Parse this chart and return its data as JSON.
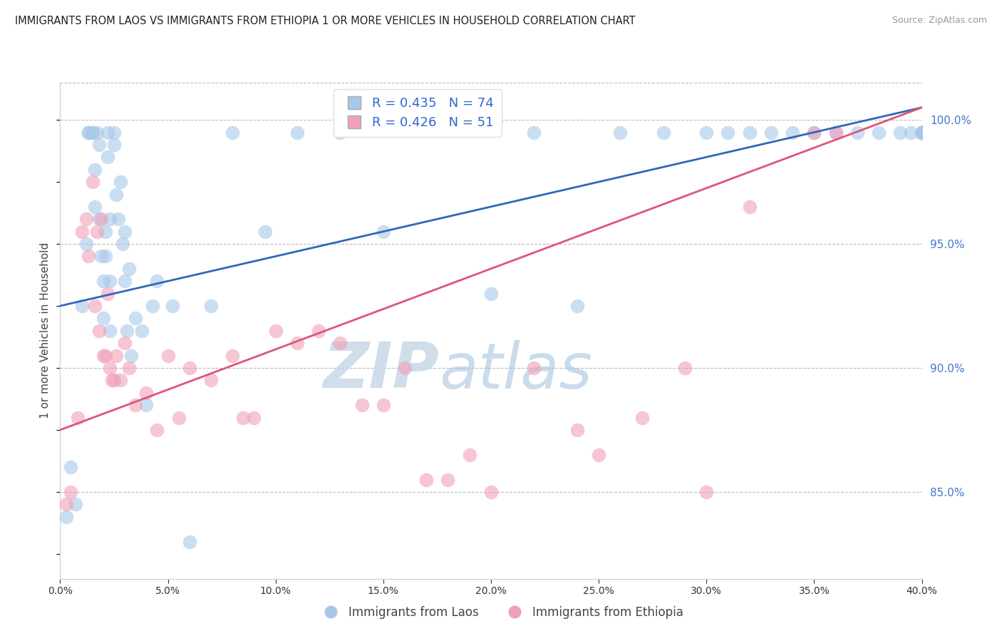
{
  "title": "IMMIGRANTS FROM LAOS VS IMMIGRANTS FROM ETHIOPIA 1 OR MORE VEHICLES IN HOUSEHOLD CORRELATION CHART",
  "source": "Source: ZipAtlas.com",
  "ylabel": "1 or more Vehicles in Household",
  "legend_blue_R": "0.435",
  "legend_blue_N": "74",
  "legend_pink_R": "0.426",
  "legend_pink_N": "51",
  "legend_label_blue": "Immigrants from Laos",
  "legend_label_pink": "Immigrants from Ethiopia",
  "xmin": 0.0,
  "xmax": 40.0,
  "ymin": 81.5,
  "ymax": 101.5,
  "yticks_right": [
    85.0,
    90.0,
    95.0,
    100.0
  ],
  "blue_color": "#a8c8e8",
  "pink_color": "#f0a0b8",
  "blue_line_color": "#3366bb",
  "pink_line_color": "#dd5577",
  "watermark_zip": "ZIP",
  "watermark_atlas": "atlas",
  "blue_line_x0": 0.0,
  "blue_line_y0": 92.5,
  "blue_line_x1": 40.0,
  "blue_line_y1": 100.5,
  "pink_line_x0": 0.0,
  "pink_line_y0": 87.5,
  "pink_line_x1": 40.0,
  "pink_line_y1": 100.5,
  "laos_x": [
    0.3,
    0.5,
    0.7,
    1.0,
    1.2,
    1.3,
    1.3,
    1.5,
    1.5,
    1.6,
    1.6,
    1.7,
    1.8,
    1.8,
    1.9,
    2.0,
    2.0,
    2.1,
    2.1,
    2.2,
    2.2,
    2.3,
    2.3,
    2.3,
    2.5,
    2.5,
    2.6,
    2.7,
    2.8,
    2.9,
    3.0,
    3.0,
    3.1,
    3.2,
    3.3,
    3.5,
    3.8,
    4.0,
    4.3,
    4.5,
    5.2,
    6.0,
    7.0,
    8.0,
    9.5,
    11.0,
    13.0,
    15.0,
    20.0,
    22.0,
    24.0,
    26.0,
    28.0,
    30.0,
    31.0,
    32.0,
    33.0,
    34.0,
    35.0,
    36.0,
    37.0,
    38.0,
    39.0,
    39.5,
    40.0,
    40.0,
    40.0,
    40.0,
    40.0,
    40.0,
    40.0,
    40.0,
    40.0,
    40.0
  ],
  "laos_y": [
    84.0,
    86.0,
    84.5,
    92.5,
    95.0,
    99.5,
    99.5,
    99.5,
    99.5,
    98.0,
    96.5,
    99.5,
    99.0,
    96.0,
    94.5,
    93.5,
    92.0,
    95.5,
    94.5,
    99.5,
    98.5,
    91.5,
    93.5,
    96.0,
    99.0,
    99.5,
    97.0,
    96.0,
    97.5,
    95.0,
    93.5,
    95.5,
    91.5,
    94.0,
    90.5,
    92.0,
    91.5,
    88.5,
    92.5,
    93.5,
    92.5,
    83.0,
    92.5,
    99.5,
    95.5,
    99.5,
    99.5,
    95.5,
    93.0,
    99.5,
    92.5,
    99.5,
    99.5,
    99.5,
    99.5,
    99.5,
    99.5,
    99.5,
    99.5,
    99.5,
    99.5,
    99.5,
    99.5,
    99.5,
    99.5,
    99.5,
    99.5,
    99.5,
    99.5,
    99.5,
    99.5,
    99.5,
    99.5,
    99.5
  ],
  "ethiopia_x": [
    0.3,
    0.5,
    0.8,
    1.0,
    1.2,
    1.3,
    1.5,
    1.6,
    1.7,
    1.8,
    1.9,
    2.0,
    2.1,
    2.2,
    2.3,
    2.4,
    2.5,
    2.6,
    2.8,
    3.0,
    3.2,
    3.5,
    4.0,
    4.5,
    5.0,
    5.5,
    6.0,
    7.0,
    8.0,
    8.5,
    9.0,
    10.0,
    11.0,
    12.0,
    13.0,
    14.0,
    15.0,
    16.0,
    17.0,
    18.0,
    19.0,
    20.0,
    22.0,
    24.0,
    25.0,
    27.0,
    29.0,
    30.0,
    32.0,
    35.0,
    36.0
  ],
  "ethiopia_y": [
    84.5,
    85.0,
    88.0,
    95.5,
    96.0,
    94.5,
    97.5,
    92.5,
    95.5,
    91.5,
    96.0,
    90.5,
    90.5,
    93.0,
    90.0,
    89.5,
    89.5,
    90.5,
    89.5,
    91.0,
    90.0,
    88.5,
    89.0,
    87.5,
    90.5,
    88.0,
    90.0,
    89.5,
    90.5,
    88.0,
    88.0,
    91.5,
    91.0,
    91.5,
    91.0,
    88.5,
    88.5,
    90.0,
    85.5,
    85.5,
    86.5,
    85.0,
    90.0,
    87.5,
    86.5,
    88.0,
    90.0,
    85.0,
    96.5,
    99.5,
    99.5
  ]
}
